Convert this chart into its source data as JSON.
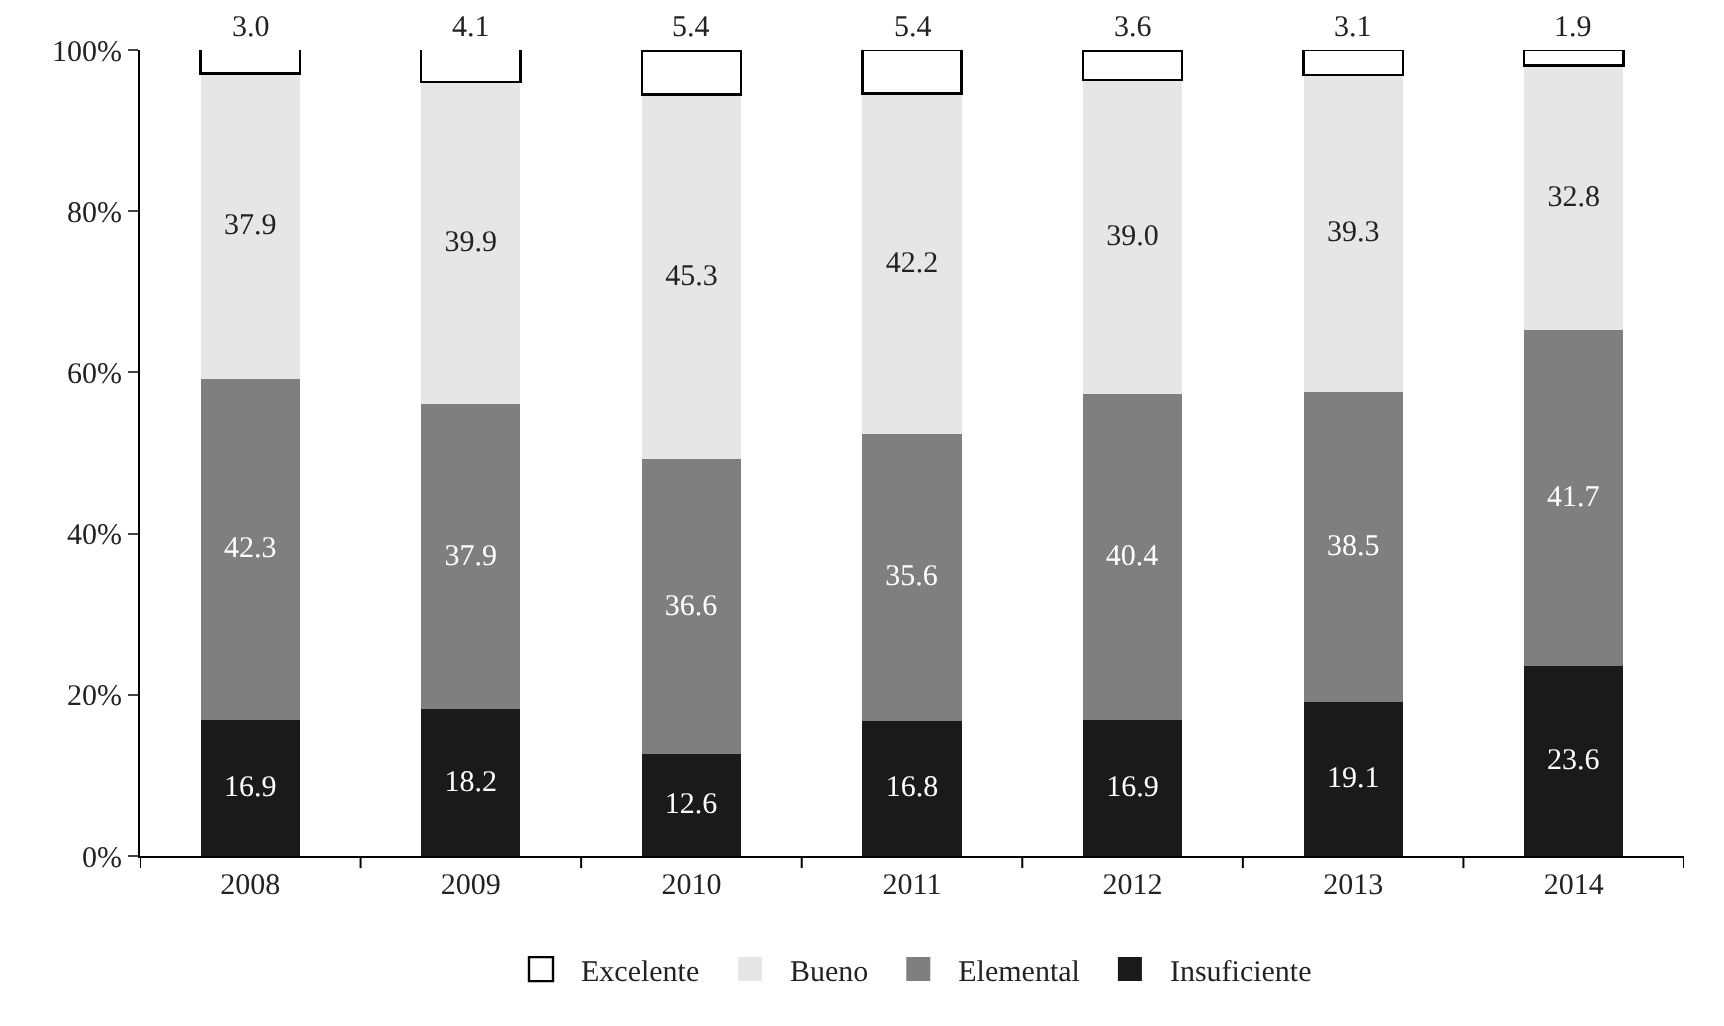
{
  "chart_data": {
    "type": "bar",
    "stacked": true,
    "legend": "bottom",
    "categories": [
      "2008",
      "2009",
      "2010",
      "2011",
      "2012",
      "2013",
      "2014"
    ],
    "ylim": [
      0,
      100
    ],
    "yticks": [
      {
        "value": 0,
        "label": "0%"
      },
      {
        "value": 20,
        "label": "20%"
      },
      {
        "value": 40,
        "label": "40%"
      },
      {
        "value": 60,
        "label": "60%"
      },
      {
        "value": 80,
        "label": "80%"
      },
      {
        "value": 100,
        "label": "100%"
      }
    ],
    "series": [
      {
        "name": "Insuficiente",
        "color": "#1a1a1a",
        "values": [
          16.9,
          18.2,
          12.6,
          16.8,
          16.9,
          19.1,
          23.6
        ],
        "value_labels": [
          "16.9",
          "18.2",
          "12.6",
          "16.8",
          "16.9",
          "19.1",
          "23.6"
        ]
      },
      {
        "name": "Elemental",
        "color": "#7f7f7f",
        "values": [
          42.3,
          37.9,
          36.6,
          35.6,
          40.4,
          38.5,
          41.7
        ],
        "value_labels": [
          "42.3",
          "37.9",
          "36.6",
          "35.6",
          "40.4",
          "38.5",
          "41.7"
        ]
      },
      {
        "name": "Bueno",
        "color": "#e6e6e6",
        "values": [
          37.9,
          39.9,
          45.3,
          42.2,
          39.0,
          39.3,
          32.8
        ],
        "value_labels": [
          "37.9",
          "39.9",
          "45.3",
          "42.2",
          "39.0",
          "39.3",
          "32.8"
        ]
      },
      {
        "name": "Excelente",
        "color": "#ffffff",
        "values": [
          3.0,
          4.1,
          5.4,
          5.4,
          3.6,
          3.1,
          1.9
        ],
        "value_labels": [
          "3.0",
          "4.1",
          "5.4",
          "5.4",
          "3.6",
          "3.1",
          "1.9"
        ]
      }
    ]
  }
}
